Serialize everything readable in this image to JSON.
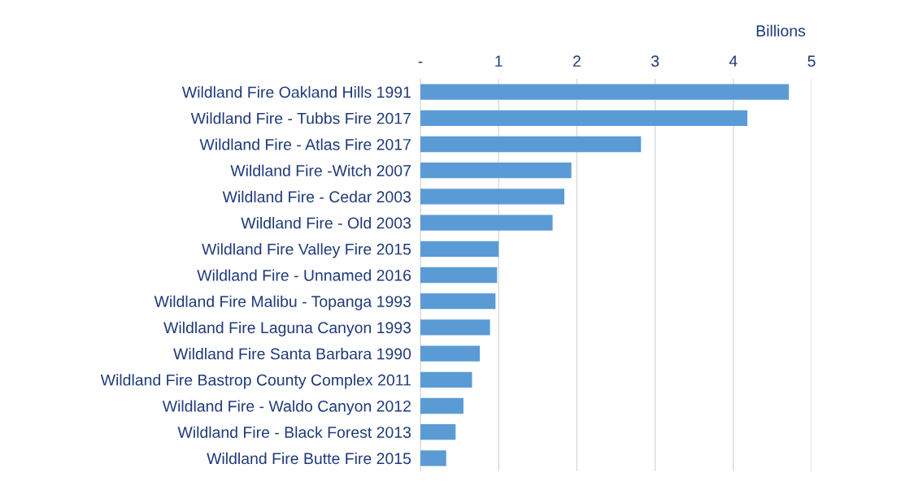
{
  "chart_data": {
    "type": "bar",
    "orientation": "horizontal",
    "xlabel": "Billions",
    "categories": [
      "Wildland Fire Oakland Hills 1991",
      "Wildland Fire - Tubbs Fire 2017",
      "Wildland Fire - Atlas Fire 2017",
      "Wildland Fire -Witch 2007",
      "Wildland Fire - Cedar 2003",
      "Wildland Fire - Old 2003",
      "Wildland Fire Valley Fire 2015",
      "Wildland Fire - Unnamed 2016",
      "Wildland Fire Malibu - Topanga 1993",
      "Wildland Fire Laguna Canyon 1993",
      "Wildland Fire Santa Barbara 1990",
      "Wildland Fire Bastrop County Complex 2011",
      "Wildland Fire - Waldo Canyon 2012",
      "Wildland Fire - Black Forest 2013",
      "Wildland Fire Butte Fire 2015"
    ],
    "values": [
      4.71,
      4.18,
      2.82,
      1.93,
      1.84,
      1.69,
      1.0,
      0.98,
      0.96,
      0.89,
      0.76,
      0.66,
      0.55,
      0.45,
      0.33
    ],
    "color": "#5b9bd5",
    "xlim": [
      0,
      5
    ],
    "xticks": [
      {
        "value": 0,
        "label": "-"
      },
      1,
      2,
      3,
      4,
      5
    ],
    "grid": "x"
  }
}
